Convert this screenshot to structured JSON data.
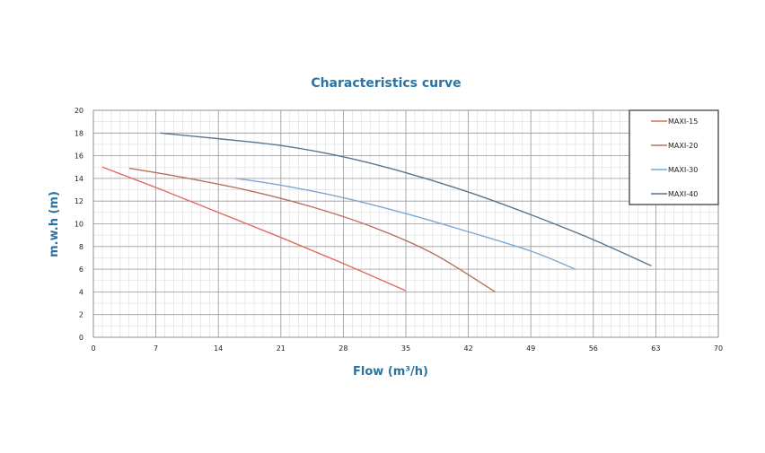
{
  "chart_data": {
    "type": "line",
    "title": "Characteristics curve",
    "xlabel": "Flow (m³/h)",
    "ylabel": "m.w.h (m)",
    "xlim": [
      0,
      70
    ],
    "ylim": [
      0,
      20
    ],
    "xticks": [
      0,
      7,
      14,
      21,
      28,
      35,
      42,
      49,
      56,
      63,
      70
    ],
    "yticks": [
      0,
      2,
      4,
      6,
      8,
      10,
      12,
      14,
      16,
      18,
      20
    ],
    "grid": true,
    "legend": "top-right",
    "series": [
      {
        "name": "MAXI-15",
        "color": "#e06b5f",
        "x": [
          1,
          7,
          14,
          21,
          28,
          35
        ],
        "y": [
          15.0,
          13.2,
          11.0,
          8.8,
          6.5,
          4.1
        ]
      },
      {
        "name": "MAXI-20",
        "color": "#b5735c",
        "x": [
          4,
          10,
          17,
          24,
          31,
          38,
          45
        ],
        "y": [
          14.9,
          14.1,
          13.0,
          11.6,
          9.8,
          7.4,
          4.0
        ]
      },
      {
        "name": "MAXI-30",
        "color": "#79a9d6",
        "x": [
          16,
          21,
          28,
          35,
          42,
          49,
          54
        ],
        "y": [
          14.0,
          13.4,
          12.3,
          10.9,
          9.3,
          7.6,
          6.0
        ]
      },
      {
        "name": "MAXI-40",
        "color": "#5a7590",
        "x": [
          7.5,
          14,
          21,
          28,
          35,
          42,
          49,
          56,
          62.5
        ],
        "y": [
          18.0,
          17.5,
          16.9,
          15.9,
          14.5,
          12.8,
          10.8,
          8.6,
          6.3
        ]
      }
    ]
  }
}
